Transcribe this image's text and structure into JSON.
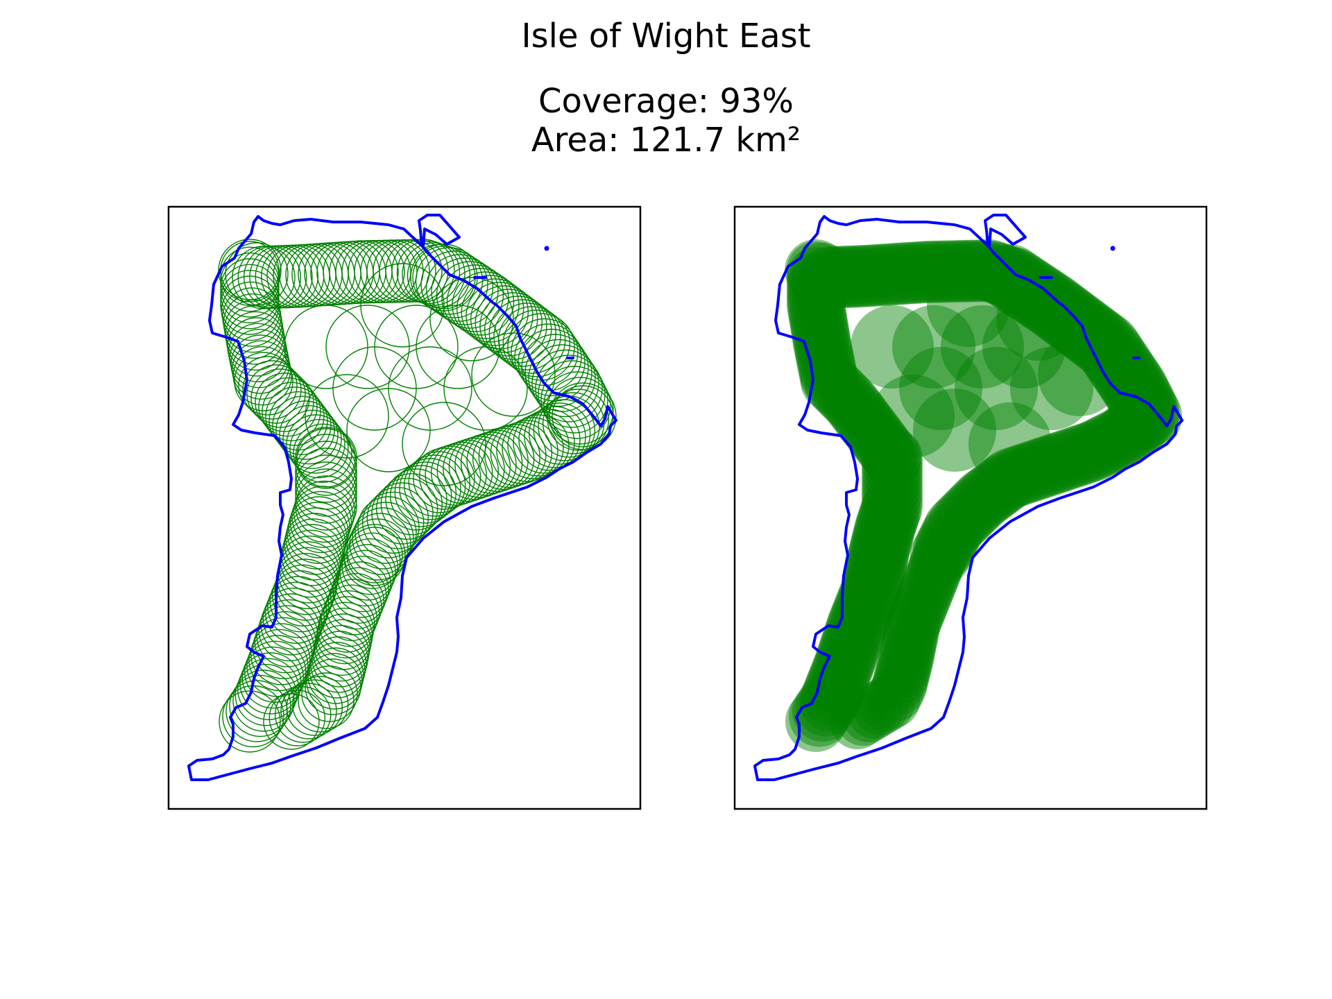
{
  "title": "Isle of Wight East",
  "stats": {
    "coverage_label": "Coverage: 93%",
    "area_label": "Area: 121.7 km²",
    "coverage_percent": 93,
    "area_km2": 121.7
  },
  "colors": {
    "boundary": "#0000ff",
    "coverage": "#008000",
    "frame": "#000000",
    "background": "#ffffff"
  },
  "panels": [
    {
      "name": "coverage-outline-map",
      "style": "outline circles"
    },
    {
      "name": "coverage-filled-map",
      "style": "filled translucent circles"
    }
  ]
}
